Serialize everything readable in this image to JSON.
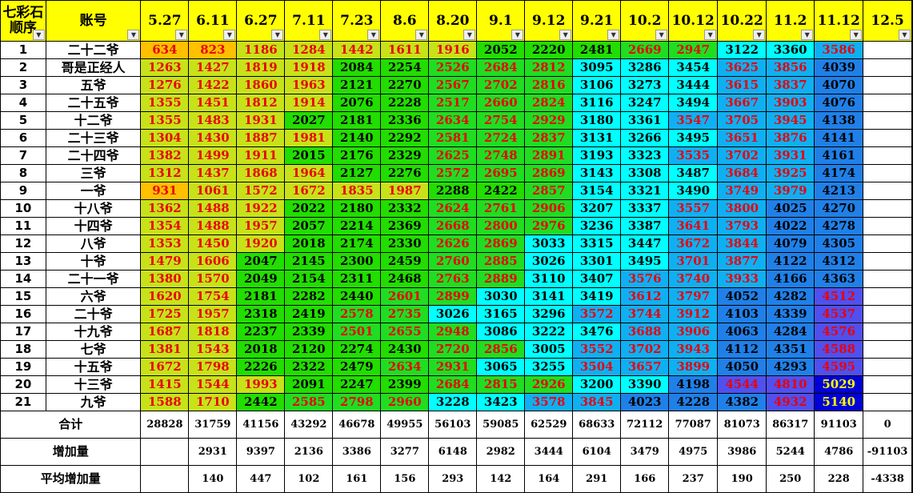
{
  "sheet": {
    "corner_header": "七彩石\n顺序",
    "name_header": "账号",
    "dates": [
      "5.27",
      "6.11",
      "6.27",
      "7.11",
      "7.23",
      "8.6",
      "8.20",
      "9.1",
      "9.12",
      "9.21",
      "10.2",
      "10.12",
      "10.22",
      "11.2",
      "11.12",
      "12.5"
    ],
    "rows": [
      {
        "seq": "1",
        "name": "二十二爷",
        "values": [
          "634",
          "823",
          "1186",
          "1284",
          "1442",
          "1611",
          "1916",
          "2052",
          "2220",
          "2481",
          "2669",
          "2947",
          "3122",
          "3360",
          "3586",
          ""
        ]
      },
      {
        "seq": "2",
        "name": "哥是正经人",
        "values": [
          "1263",
          "1427",
          "1819",
          "1918",
          "2084",
          "2254",
          "2526",
          "2684",
          "2812",
          "3095",
          "3286",
          "3454",
          "3625",
          "3856",
          "4039",
          ""
        ]
      },
      {
        "seq": "3",
        "name": "五爷",
        "values": [
          "1276",
          "1422",
          "1860",
          "1963",
          "2121",
          "2270",
          "2567",
          "2702",
          "2816",
          "3106",
          "3273",
          "3444",
          "3615",
          "3837",
          "4070",
          ""
        ]
      },
      {
        "seq": "4",
        "name": "二十五爷",
        "values": [
          "1355",
          "1451",
          "1812",
          "1914",
          "2076",
          "2228",
          "2517",
          "2660",
          "2824",
          "3116",
          "3247",
          "3494",
          "3667",
          "3903",
          "4076",
          ""
        ]
      },
      {
        "seq": "5",
        "name": "十二爷",
        "values": [
          "1355",
          "1483",
          "1931",
          "2027",
          "2181",
          "2336",
          "2634",
          "2754",
          "2929",
          "3180",
          "3361",
          "3547",
          "3705",
          "3945",
          "4138",
          ""
        ]
      },
      {
        "seq": "6",
        "name": "二十三爷",
        "values": [
          "1304",
          "1430",
          "1887",
          "1981",
          "2140",
          "2292",
          "2581",
          "2724",
          "2837",
          "3131",
          "3266",
          "3495",
          "3651",
          "3876",
          "4141",
          ""
        ]
      },
      {
        "seq": "7",
        "name": "二十四爷",
        "values": [
          "1382",
          "1499",
          "1911",
          "2015",
          "2176",
          "2329",
          "2625",
          "2748",
          "2891",
          "3193",
          "3323",
          "3535",
          "3702",
          "3931",
          "4161",
          ""
        ]
      },
      {
        "seq": "8",
        "name": "三爷",
        "values": [
          "1312",
          "1437",
          "1868",
          "1964",
          "2127",
          "2276",
          "2572",
          "2695",
          "2869",
          "3143",
          "3308",
          "3487",
          "3684",
          "3925",
          "4174",
          ""
        ]
      },
      {
        "seq": "9",
        "name": "一爷",
        "values": [
          "931",
          "1061",
          "1572",
          "1672",
          "1835",
          "1987",
          "2288",
          "2422",
          "2857",
          "3154",
          "3321",
          "3490",
          "3749",
          "3979",
          "4213",
          ""
        ]
      },
      {
        "seq": "10",
        "name": "十八爷",
        "values": [
          "1362",
          "1488",
          "1922",
          "2022",
          "2180",
          "2332",
          "2624",
          "2761",
          "2906",
          "3207",
          "3337",
          "3557",
          "3800",
          "4025",
          "4270",
          ""
        ]
      },
      {
        "seq": "11",
        "name": "十四爷",
        "values": [
          "1354",
          "1488",
          "1957",
          "2057",
          "2214",
          "2369",
          "2668",
          "2800",
          "2976",
          "3236",
          "3387",
          "3641",
          "3793",
          "4022",
          "4278",
          ""
        ]
      },
      {
        "seq": "12",
        "name": "八爷",
        "values": [
          "1353",
          "1450",
          "1920",
          "2018",
          "2174",
          "2330",
          "2626",
          "2869",
          "3033",
          "3315",
          "3447",
          "3672",
          "3844",
          "4079",
          "4305",
          ""
        ]
      },
      {
        "seq": "13",
        "name": "十爷",
        "values": [
          "1479",
          "1606",
          "2047",
          "2145",
          "2300",
          "2459",
          "2760",
          "2885",
          "3026",
          "3301",
          "3495",
          "3701",
          "3877",
          "4122",
          "4312",
          ""
        ]
      },
      {
        "seq": "14",
        "name": "二十一爷",
        "values": [
          "1380",
          "1570",
          "2049",
          "2154",
          "2311",
          "2468",
          "2763",
          "2889",
          "3110",
          "3407",
          "3576",
          "3740",
          "3933",
          "4166",
          "4363",
          ""
        ]
      },
      {
        "seq": "15",
        "name": "六爷",
        "values": [
          "1620",
          "1754",
          "2181",
          "2282",
          "2440",
          "2601",
          "2899",
          "3030",
          "3141",
          "3419",
          "3612",
          "3797",
          "4052",
          "4282",
          "4512",
          ""
        ]
      },
      {
        "seq": "16",
        "name": "二十爷",
        "values": [
          "1725",
          "1957",
          "2318",
          "2419",
          "2578",
          "2735",
          "3026",
          "3165",
          "3296",
          "3572",
          "3744",
          "3912",
          "4103",
          "4339",
          "4537",
          ""
        ]
      },
      {
        "seq": "17",
        "name": "十九爷",
        "values": [
          "1687",
          "1818",
          "2237",
          "2339",
          "2501",
          "2655",
          "2948",
          "3086",
          "3222",
          "3476",
          "3688",
          "3906",
          "4063",
          "4284",
          "4576",
          ""
        ]
      },
      {
        "seq": "18",
        "name": "七爷",
        "values": [
          "1381",
          "1543",
          "2018",
          "2120",
          "2274",
          "2430",
          "2720",
          "2856",
          "3005",
          "3552",
          "3702",
          "3943",
          "4112",
          "4351",
          "4588",
          ""
        ]
      },
      {
        "seq": "19",
        "name": "十五爷",
        "values": [
          "1672",
          "1798",
          "2226",
          "2322",
          "2479",
          "2634",
          "2931",
          "3065",
          "3255",
          "3504",
          "3657",
          "3899",
          "4050",
          "4293",
          "4595",
          ""
        ]
      },
      {
        "seq": "20",
        "name": "十三爷",
        "values": [
          "1415",
          "1544",
          "1993",
          "2091",
          "2247",
          "2399",
          "2684",
          "2815",
          "2926",
          "3200",
          "3390",
          "4198",
          "4544",
          "4810",
          "5029",
          ""
        ]
      },
      {
        "seq": "21",
        "name": "九爷",
        "values": [
          "1588",
          "1710",
          "2442",
          "2585",
          "2798",
          "2960",
          "3228",
          "3423",
          "3578",
          "3845",
          "4023",
          "4228",
          "4382",
          "4932",
          "5140",
          ""
        ]
      }
    ],
    "footer": [
      {
        "label": "合计",
        "values": [
          "28828",
          "31759",
          "41156",
          "43292",
          "46678",
          "49955",
          "56103",
          "59085",
          "62529",
          "68633",
          "72112",
          "77087",
          "81073",
          "86317",
          "91103",
          "0"
        ]
      },
      {
        "label": "增加量",
        "values": [
          "",
          "2931",
          "9397",
          "2136",
          "3386",
          "3277",
          "6148",
          "2982",
          "3444",
          "6104",
          "3479",
          "4975",
          "3986",
          "5244",
          "4786",
          "-91103"
        ]
      },
      {
        "label": "平均增加量",
        "values": [
          "",
          "140",
          "447",
          "102",
          "161",
          "156",
          "293",
          "142",
          "164",
          "291",
          "166",
          "237",
          "190",
          "250",
          "228",
          "-4338"
        ]
      }
    ],
    "colors": {
      "header_bg": "#ffff00",
      "text_red": "#e8000b",
      "fill_orange": "#ffc000",
      "fill_yellowgreen": "#c8e21a",
      "fill_green": "#22dd00",
      "fill_cyan": "#00ffff",
      "fill_skyblue": "#0fb0f2",
      "fill_blue": "#2080e8",
      "fill_indigo": "#5050ee",
      "fill_darkblue": "#0000d8"
    }
  }
}
